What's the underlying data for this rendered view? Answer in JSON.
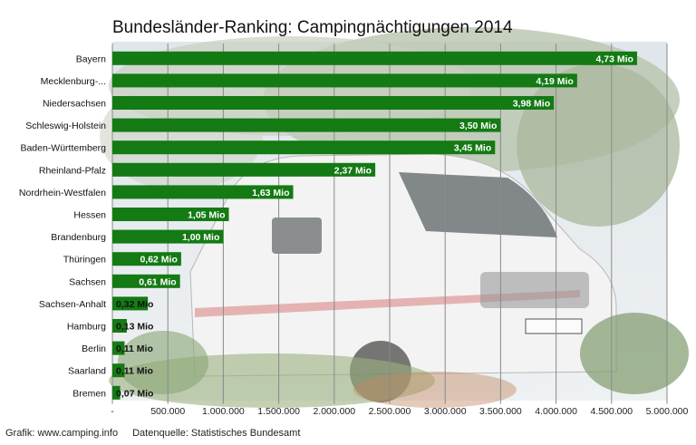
{
  "chart_data": {
    "type": "bar",
    "orientation": "horizontal",
    "title": "Bundesländer-Ranking: Campingnächtigungen 2014",
    "categories": [
      "Bayern",
      "Mecklenburg-...",
      "Niedersachsen",
      "Schleswig-Holstein",
      "Baden-Württemberg",
      "Rheinland-Pfalz",
      "Nordrhein-Westfalen",
      "Hessen",
      "Brandenburg",
      "Thüringen",
      "Sachsen",
      "Sachsen-Anhalt",
      "Hamburg",
      "Berlin",
      "Saarland",
      "Bremen"
    ],
    "values": [
      4730000,
      4190000,
      3980000,
      3500000,
      3450000,
      2370000,
      1630000,
      1050000,
      1000000,
      620000,
      610000,
      320000,
      130000,
      110000,
      110000,
      70000
    ],
    "data_labels": [
      "4,73 Mio",
      "4,19 Mio",
      "3,98 Mio",
      "3,50 Mio",
      "3,45 Mio",
      "2,37 Mio",
      "1,63 Mio",
      "1,05 Mio",
      "1,00 Mio",
      "0,62 Mio",
      "0,61 Mio",
      "0,32 Mio",
      "0,13 Mio",
      "0,11 Mio",
      "0,11 Mio",
      "0,07 Mio"
    ],
    "xlim": [
      0,
      5000000
    ],
    "x_ticks": [
      0,
      500000,
      1000000,
      1500000,
      2000000,
      2500000,
      3000000,
      3500000,
      4000000,
      4500000,
      5000000
    ],
    "x_tick_labels": [
      "-",
      "500.000",
      "1.000.000",
      "1.500.000",
      "2.000.000",
      "2.500.000",
      "3.000.000",
      "3.500.000",
      "4.000.000",
      "4.500.000",
      "5.000.000"
    ],
    "grid": "vertical",
    "bar_color": "#147a14",
    "label_color": "#ffffff"
  },
  "footer": {
    "credit": "Grafik: www.camping.info",
    "source": "Datenquelle: Statistisches Bundesamt"
  }
}
